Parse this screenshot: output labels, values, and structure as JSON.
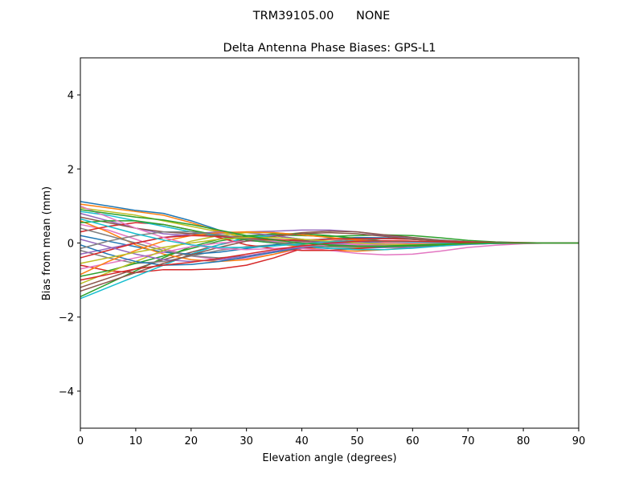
{
  "chart_data": {
    "type": "line",
    "suptitle": "TRM39105.00      NONE",
    "title": "Delta Antenna Phase Biases: GPS-L1",
    "xlabel": "Elevation angle (degrees)",
    "ylabel": "Bias from mean (mm)",
    "xlim": [
      0,
      90
    ],
    "ylim": [
      -5,
      5
    ],
    "x_ticks": [
      {
        "v": 0,
        "label": "0"
      },
      {
        "v": 10,
        "label": "10"
      },
      {
        "v": 20,
        "label": "20"
      },
      {
        "v": 30,
        "label": "30"
      },
      {
        "v": 40,
        "label": "40"
      },
      {
        "v": 50,
        "label": "50"
      },
      {
        "v": 60,
        "label": "60"
      },
      {
        "v": 70,
        "label": "70"
      },
      {
        "v": 80,
        "label": "80"
      },
      {
        "v": 90,
        "label": "90"
      }
    ],
    "y_ticks": [
      {
        "v": -4,
        "label": "−4"
      },
      {
        "v": -2,
        "label": "−2"
      },
      {
        "v": 0,
        "label": "0"
      },
      {
        "v": 2,
        "label": "2"
      },
      {
        "v": 4,
        "label": "4"
      }
    ],
    "grid": false,
    "legend": "none",
    "x": [
      0,
      5,
      10,
      15,
      20,
      25,
      30,
      35,
      40,
      45,
      50,
      55,
      60,
      65,
      70,
      75,
      80,
      85,
      90
    ],
    "series": [
      {
        "color": "#1f77b4",
        "values": [
          1.12,
          1.0,
          0.88,
          0.8,
          0.6,
          0.35,
          0.15,
          0.02,
          -0.1,
          -0.15,
          -0.15,
          -0.12,
          -0.08,
          -0.04,
          -0.01,
          0.0,
          0.0,
          0.0,
          0.0
        ]
      },
      {
        "color": "#ff7f0e",
        "values": [
          1.05,
          0.95,
          0.85,
          0.75,
          0.55,
          0.32,
          0.12,
          0.0,
          -0.12,
          -0.2,
          -0.22,
          -0.18,
          -0.12,
          -0.06,
          -0.02,
          0.0,
          0.0,
          0.0,
          0.0
        ]
      },
      {
        "color": "#2ca02c",
        "values": [
          -1.45,
          -1.1,
          -0.75,
          -0.4,
          -0.1,
          0.1,
          0.2,
          0.22,
          0.2,
          0.18,
          0.2,
          0.22,
          0.2,
          0.14,
          0.07,
          0.03,
          0.01,
          0.0,
          0.0
        ]
      },
      {
        "color": "#d62728",
        "values": [
          -0.6,
          -0.75,
          -0.8,
          -0.72,
          -0.72,
          -0.7,
          -0.6,
          -0.4,
          -0.15,
          -0.08,
          -0.06,
          -0.05,
          -0.02,
          0.0,
          0.02,
          0.02,
          0.01,
          0.0,
          0.0
        ]
      },
      {
        "color": "#9467bd",
        "values": [
          0.8,
          0.6,
          0.4,
          0.25,
          0.2,
          0.25,
          0.3,
          0.32,
          0.35,
          0.35,
          0.3,
          0.2,
          0.12,
          0.06,
          0.02,
          0.01,
          0.0,
          0.0,
          0.0
        ]
      },
      {
        "color": "#8c564b",
        "values": [
          -1.2,
          -0.95,
          -0.7,
          -0.45,
          -0.25,
          -0.05,
          0.1,
          0.2,
          0.28,
          0.32,
          0.3,
          0.22,
          0.15,
          0.08,
          0.03,
          0.01,
          0.0,
          0.0,
          0.0
        ]
      },
      {
        "color": "#e377c2",
        "values": [
          0.5,
          0.35,
          0.1,
          -0.15,
          -0.35,
          -0.45,
          -0.42,
          -0.3,
          -0.15,
          -0.2,
          -0.28,
          -0.32,
          -0.3,
          -0.22,
          -0.12,
          -0.06,
          -0.02,
          0.0,
          0.0
        ]
      },
      {
        "color": "#7f7f7f",
        "values": [
          -0.2,
          -0.4,
          -0.55,
          -0.5,
          -0.35,
          -0.2,
          -0.1,
          -0.05,
          0.0,
          0.05,
          0.1,
          0.12,
          0.1,
          0.06,
          0.03,
          0.01,
          0.0,
          0.0,
          0.0
        ]
      },
      {
        "color": "#bcbd22",
        "values": [
          0.95,
          0.85,
          0.75,
          0.6,
          0.45,
          0.3,
          0.15,
          0.05,
          -0.05,
          -0.1,
          -0.12,
          -0.1,
          -0.07,
          -0.04,
          -0.02,
          0.0,
          0.0,
          0.0,
          0.0
        ]
      },
      {
        "color": "#17becf",
        "values": [
          -1.5,
          -1.2,
          -0.9,
          -0.6,
          -0.3,
          -0.05,
          0.15,
          0.2,
          0.1,
          0.0,
          -0.08,
          -0.1,
          -0.08,
          -0.05,
          -0.02,
          0.0,
          0.0,
          0.0,
          0.0
        ]
      },
      {
        "color": "#1f77b4",
        "values": [
          0.2,
          0.05,
          -0.1,
          -0.25,
          -0.3,
          -0.25,
          -0.15,
          -0.05,
          0.05,
          0.12,
          0.15,
          0.14,
          0.1,
          0.06,
          0.03,
          0.01,
          0.0,
          0.0,
          0.0
        ]
      },
      {
        "color": "#ff7f0e",
        "values": [
          0.6,
          0.3,
          -0.05,
          -0.3,
          -0.45,
          -0.5,
          -0.45,
          -0.3,
          -0.12,
          0.0,
          0.05,
          0.06,
          0.05,
          0.03,
          0.01,
          0.0,
          0.0,
          0.0,
          0.0
        ]
      },
      {
        "color": "#2ca02c",
        "values": [
          -0.9,
          -0.75,
          -0.55,
          -0.35,
          -0.15,
          0.05,
          0.18,
          0.25,
          0.25,
          0.2,
          0.12,
          0.05,
          0.0,
          -0.02,
          -0.02,
          -0.01,
          0.0,
          0.0,
          0.0
        ]
      },
      {
        "color": "#d62728",
        "values": [
          0.3,
          0.45,
          0.55,
          0.5,
          0.35,
          0.15,
          -0.05,
          -0.15,
          -0.2,
          -0.2,
          -0.15,
          -0.1,
          -0.05,
          -0.02,
          0.0,
          0.0,
          0.0,
          0.0,
          0.0
        ]
      },
      {
        "color": "#9467bd",
        "values": [
          -0.3,
          -0.15,
          0.0,
          0.15,
          0.25,
          0.3,
          0.28,
          0.2,
          0.1,
          0.0,
          -0.08,
          -0.12,
          -0.12,
          -0.08,
          -0.04,
          -0.01,
          0.0,
          0.0,
          0.0
        ]
      },
      {
        "color": "#8c564b",
        "values": [
          0.7,
          0.55,
          0.4,
          0.3,
          0.25,
          0.2,
          0.15,
          0.1,
          0.05,
          0.0,
          -0.05,
          -0.08,
          -0.08,
          -0.06,
          -0.03,
          -0.01,
          0.0,
          0.0,
          0.0
        ]
      },
      {
        "color": "#e377c2",
        "values": [
          -0.7,
          -0.55,
          -0.4,
          -0.25,
          -0.1,
          0.0,
          0.05,
          0.05,
          0.02,
          -0.02,
          -0.05,
          -0.06,
          -0.05,
          -0.03,
          -0.01,
          0.0,
          0.0,
          0.0,
          0.0
        ]
      },
      {
        "color": "#7f7f7f",
        "values": [
          0.4,
          0.2,
          0.0,
          -0.2,
          -0.35,
          -0.4,
          -0.35,
          -0.25,
          -0.12,
          0.0,
          0.08,
          0.12,
          0.12,
          0.08,
          0.04,
          0.01,
          0.0,
          0.0,
          0.0
        ]
      },
      {
        "color": "#bcbd22",
        "values": [
          -1.1,
          -0.8,
          -0.5,
          -0.2,
          0.05,
          0.2,
          0.28,
          0.28,
          0.22,
          0.15,
          0.08,
          0.03,
          0.0,
          -0.01,
          -0.01,
          0.0,
          0.0,
          0.0,
          0.0
        ]
      },
      {
        "color": "#17becf",
        "values": [
          0.85,
          0.75,
          0.6,
          0.45,
          0.3,
          0.18,
          0.08,
          0.0,
          -0.08,
          -0.14,
          -0.18,
          -0.18,
          -0.14,
          -0.08,
          -0.03,
          -0.01,
          0.0,
          0.0,
          0.0
        ]
      },
      {
        "color": "#1f77b4",
        "values": [
          -0.05,
          -0.3,
          -0.5,
          -0.6,
          -0.58,
          -0.5,
          -0.38,
          -0.25,
          -0.12,
          -0.04,
          0.0,
          0.02,
          0.02,
          0.01,
          0.0,
          0.0,
          0.0,
          0.0,
          0.0
        ]
      },
      {
        "color": "#ff7f0e",
        "values": [
          -0.85,
          -0.5,
          -0.2,
          0.05,
          0.2,
          0.28,
          0.3,
          0.28,
          0.22,
          0.15,
          0.08,
          0.03,
          0.0,
          -0.01,
          -0.01,
          0.0,
          0.0,
          0.0,
          0.0
        ]
      },
      {
        "color": "#2ca02c",
        "values": [
          0.55,
          0.6,
          0.6,
          0.5,
          0.35,
          0.2,
          0.08,
          0.0,
          -0.05,
          -0.08,
          -0.1,
          -0.1,
          -0.08,
          -0.05,
          -0.02,
          0.0,
          0.0,
          0.0,
          0.0
        ]
      },
      {
        "color": "#d62728",
        "values": [
          -0.4,
          -0.2,
          0.0,
          0.15,
          0.2,
          0.18,
          0.12,
          0.08,
          0.08,
          0.1,
          0.12,
          0.12,
          0.1,
          0.06,
          0.03,
          0.01,
          0.0,
          0.0,
          0.0
        ]
      },
      {
        "color": "#9467bd",
        "values": [
          0.1,
          -0.1,
          -0.3,
          -0.45,
          -0.5,
          -0.45,
          -0.35,
          -0.22,
          -0.1,
          -0.02,
          0.03,
          0.05,
          0.04,
          0.02,
          0.01,
          0.0,
          0.0,
          0.0,
          0.0
        ]
      },
      {
        "color": "#8c564b",
        "values": [
          -1.3,
          -1.05,
          -0.8,
          -0.55,
          -0.32,
          -0.12,
          0.05,
          0.18,
          0.25,
          0.28,
          0.25,
          0.18,
          0.1,
          0.05,
          0.02,
          0.0,
          0.0,
          0.0,
          0.0
        ]
      },
      {
        "color": "#e377c2",
        "values": [
          1.0,
          0.7,
          0.4,
          0.15,
          -0.05,
          -0.15,
          -0.18,
          -0.15,
          -0.1,
          -0.05,
          -0.02,
          0.0,
          0.0,
          0.0,
          0.0,
          0.0,
          0.0,
          0.0,
          0.0
        ]
      },
      {
        "color": "#7f7f7f",
        "values": [
          -0.15,
          0.05,
          0.2,
          0.3,
          0.3,
          0.22,
          0.12,
          0.02,
          -0.06,
          -0.1,
          -0.1,
          -0.08,
          -0.05,
          -0.03,
          -0.01,
          0.0,
          0.0,
          0.0,
          0.0
        ]
      },
      {
        "color": "#bcbd22",
        "values": [
          -0.55,
          -0.4,
          -0.25,
          -0.12,
          0.0,
          0.1,
          0.15,
          0.15,
          0.1,
          0.05,
          0.0,
          -0.03,
          -0.04,
          -0.03,
          -0.01,
          0.0,
          0.0,
          0.0,
          0.0
        ]
      },
      {
        "color": "#17becf",
        "values": [
          0.65,
          0.45,
          0.25,
          0.08,
          -0.05,
          -0.12,
          -0.12,
          -0.08,
          -0.02,
          0.03,
          0.05,
          0.05,
          0.03,
          0.01,
          0.0,
          0.0,
          0.0,
          0.0,
          0.0
        ]
      },
      {
        "color": "#d62728",
        "values": [
          -1.0,
          -0.85,
          -0.7,
          -0.6,
          -0.52,
          -0.42,
          -0.3,
          -0.18,
          -0.08,
          0.0,
          0.05,
          0.06,
          0.05,
          0.03,
          0.01,
          0.0,
          0.0,
          0.0,
          0.0
        ]
      },
      {
        "color": "#2ca02c",
        "values": [
          0.9,
          0.8,
          0.7,
          0.62,
          0.5,
          0.35,
          0.2,
          0.08,
          0.0,
          -0.05,
          -0.08,
          -0.08,
          -0.06,
          -0.03,
          -0.01,
          0.0,
          0.0,
          0.0,
          0.0
        ]
      }
    ]
  }
}
